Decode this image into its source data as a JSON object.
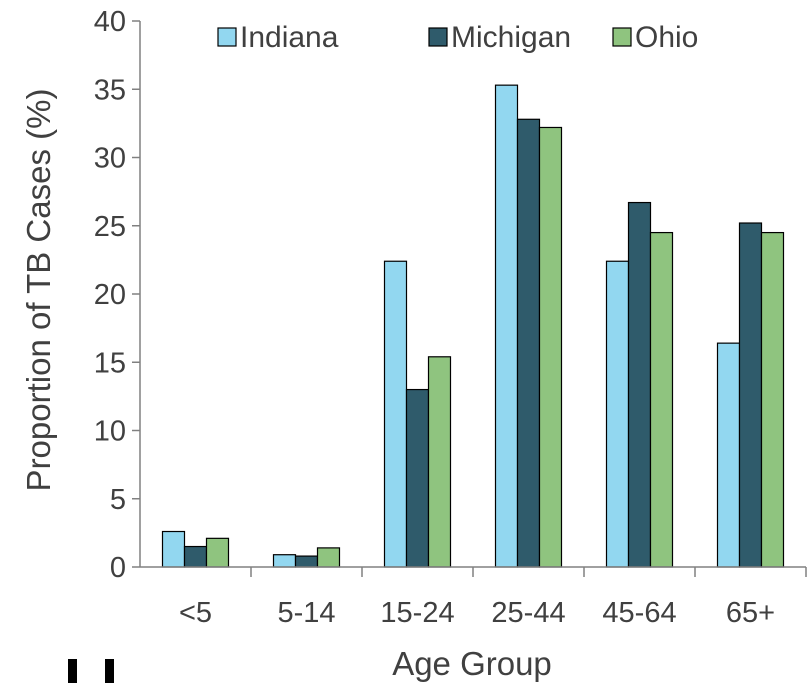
{
  "chart_data": {
    "type": "bar",
    "title": "",
    "xlabel": "Age Group",
    "ylabel": "Proportion of TB Cases (%)",
    "ylim": [
      0,
      40
    ],
    "yticks": [
      0,
      5,
      10,
      15,
      20,
      25,
      30,
      35,
      40
    ],
    "categories": [
      "<5",
      "5-14",
      "15-24",
      "25-44",
      "45-64",
      "65+"
    ],
    "series": [
      {
        "name": "Indiana",
        "color": "#92d7f0",
        "values": [
          2.6,
          0.9,
          22.4,
          35.3,
          22.4,
          16.4
        ]
      },
      {
        "name": "Michigan",
        "color": "#2f5b6b",
        "values": [
          1.5,
          0.8,
          13.0,
          32.8,
          26.7,
          25.2
        ]
      },
      {
        "name": "Ohio",
        "color": "#8fc47f",
        "values": [
          2.1,
          1.4,
          15.4,
          32.2,
          24.5,
          24.5
        ]
      }
    ],
    "grid": false,
    "legend_position": "top"
  }
}
